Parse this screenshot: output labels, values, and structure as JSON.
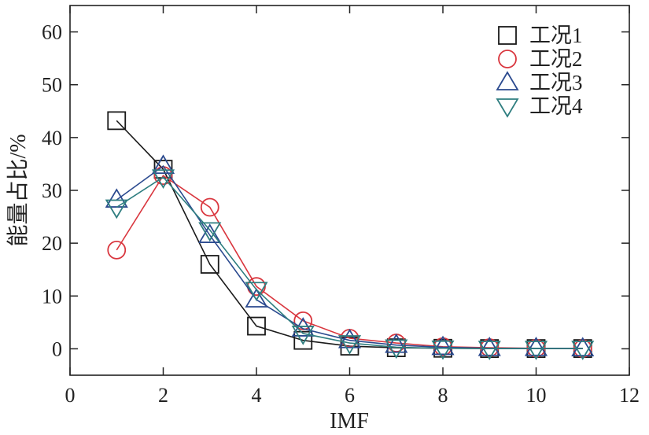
{
  "chart_data": {
    "type": "line",
    "xlabel": "IMF",
    "ylabel": "能量占比/%",
    "xlim": [
      0,
      12
    ],
    "ylim": [
      -5,
      65
    ],
    "xticks": [
      0,
      2,
      4,
      6,
      8,
      10,
      12
    ],
    "yticks": [
      0,
      10,
      20,
      30,
      40,
      50,
      60
    ],
    "grid": false,
    "legend_position": "top-right",
    "x": [
      1,
      2,
      3,
      4,
      5,
      6,
      7,
      8,
      9,
      10,
      11
    ],
    "series": [
      {
        "name": "工况1",
        "marker": "square",
        "color": "#1a1a1a",
        "values": [
          43.2,
          34.0,
          16.0,
          4.3,
          1.6,
          0.5,
          0.2,
          0.1,
          0.05,
          0.05,
          0.05
        ]
      },
      {
        "name": "工况2",
        "marker": "circle",
        "color": "#d9363e",
        "values": [
          18.7,
          32.8,
          26.8,
          11.8,
          5.3,
          2.0,
          1.1,
          0.4,
          0.2,
          0.1,
          0.05
        ]
      },
      {
        "name": "工况3",
        "marker": "triangle-up",
        "color": "#2b4a8f",
        "values": [
          28.2,
          34.6,
          21.5,
          9.3,
          3.8,
          1.6,
          0.7,
          0.3,
          0.1,
          0.1,
          0.05
        ]
      },
      {
        "name": "工况4",
        "marker": "triangle-down",
        "color": "#2f7e80",
        "values": [
          26.8,
          32.5,
          22.5,
          11.2,
          2.9,
          1.1,
          0.3,
          0.1,
          0.05,
          0.05,
          0.05
        ]
      }
    ]
  }
}
